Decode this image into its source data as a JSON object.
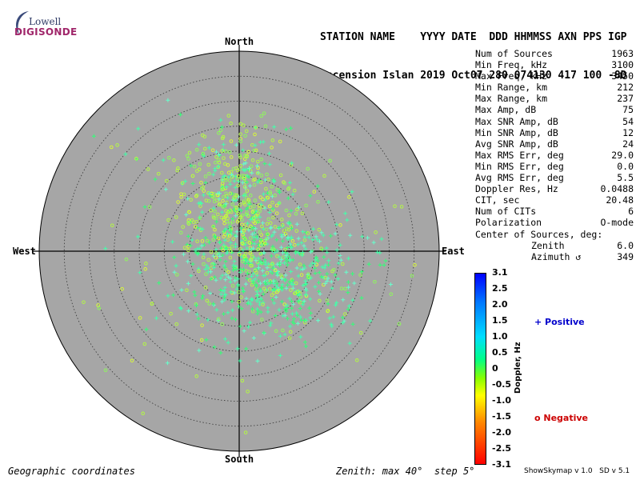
{
  "logo": {
    "line1": "Lowell",
    "line2": "DIGISONDE"
  },
  "header": {
    "line1": "STATION NAME    YYYY DATE  DDD HHMMSS AXN PPS IGP",
    "line2": "Ascension Islan 2019 Oct07 280 074130 417 100 -8D"
  },
  "stats": [
    {
      "label": "Num of Sources",
      "value": "1963"
    },
    {
      "label": "Min Freq, kHz",
      "value": "3100"
    },
    {
      "label": "Max Freq, kHz",
      "value": "3450"
    },
    {
      "label": "Min Range, km",
      "value": "212"
    },
    {
      "label": "Max Range, km",
      "value": "237"
    },
    {
      "label": "Max Amp, dB",
      "value": "75"
    },
    {
      "label": "Max SNR Amp, dB",
      "value": "54"
    },
    {
      "label": "Min SNR Amp, dB",
      "value": "12"
    },
    {
      "label": "Avg SNR Amp, dB",
      "value": "24"
    },
    {
      "label": "Max RMS Err, deg",
      "value": "29.0"
    },
    {
      "label": "Min RMS Err, deg",
      "value": "0.0"
    },
    {
      "label": "Avg RMS Err, deg",
      "value": "5.5"
    },
    {
      "label": "Doppler Res, Hz",
      "value": "0.0488"
    },
    {
      "label": "CIT, sec",
      "value": "20.48"
    },
    {
      "label": "Num of CITs",
      "value": "6"
    },
    {
      "label": "Polarization",
      "value": "O-mode"
    },
    {
      "label": "Center of Sources, deg:",
      "value": ""
    },
    {
      "label": "Zenith",
      "value": "6.0",
      "indent": true
    },
    {
      "label": "Azimuth ↺",
      "value": "349",
      "indent": true
    }
  ],
  "compass": {
    "north": "North",
    "south": "South",
    "west": "West",
    "east": "East"
  },
  "colorbar": {
    "title": "Doppler, Hz",
    "ticks": [
      "3.1",
      "2.5",
      "2.0",
      "1.5",
      "1.0",
      "0.5",
      "0",
      "-0.5",
      "-1.0",
      "-1.5",
      "-2.0",
      "-2.5",
      "-3.1"
    ]
  },
  "legend": {
    "positive": "+ Positive",
    "negative": "o Negative"
  },
  "footer": {
    "left": "Geographic coordinates",
    "mid": "Zenith: max 40°  step 5°",
    "right": "ShowSkymap v 1.0   SD v 5.1"
  },
  "colors": {
    "plot_bg": "#a6a6a6",
    "ring": "#333333",
    "positive_marker": "#44ffaa",
    "negative_marker": "#aaff44"
  },
  "chart_data": {
    "type": "scatter",
    "coordinate_system": "polar-skymap",
    "zenith_max_deg": 40,
    "zenith_step_deg": 5,
    "center_of_sources": {
      "zenith_deg": 6.0,
      "azimuth_deg": 349
    },
    "num_sources": 1963,
    "doppler_range_hz": [
      -3.1,
      3.1
    ],
    "series": [
      {
        "name": "Positive",
        "marker": "+"
      },
      {
        "name": "Negative",
        "marker": "o"
      }
    ]
  }
}
